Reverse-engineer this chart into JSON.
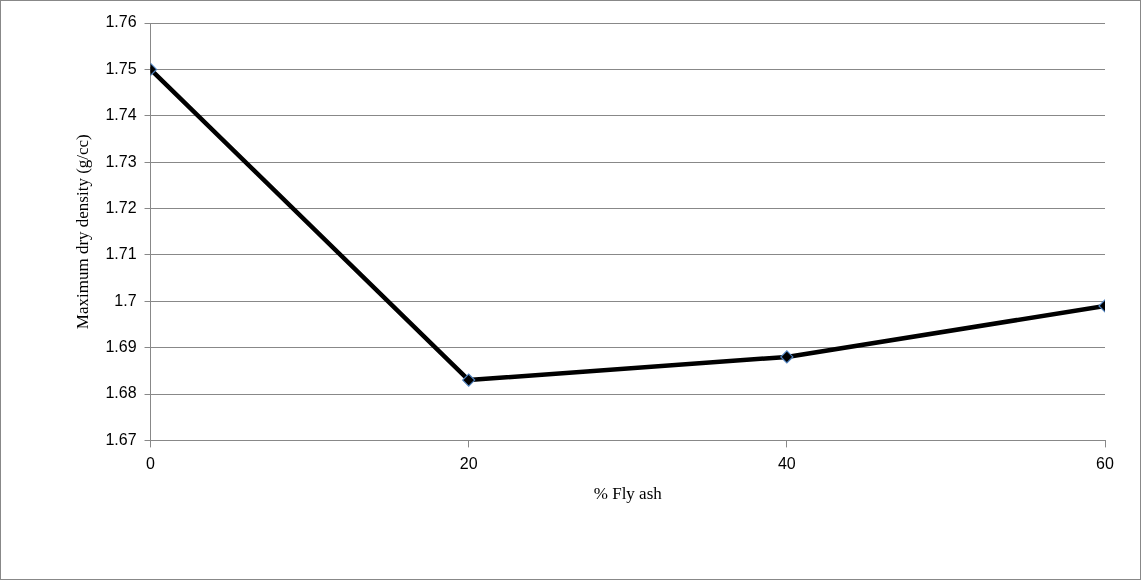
{
  "chart_data": {
    "type": "line",
    "xlabel": "% Fly ash",
    "ylabel": "Maximum dry density (g/cc)",
    "x": [
      0,
      20,
      40,
      60
    ],
    "xlim": [
      0,
      60
    ],
    "xticks": [
      0,
      20,
      40,
      60
    ],
    "ylim": [
      1.67,
      1.76
    ],
    "yticks": [
      1.67,
      1.68,
      1.69,
      1.7,
      1.71,
      1.72,
      1.73,
      1.74,
      1.75,
      1.76
    ],
    "series": [
      {
        "color": "#000000",
        "values": [
          1.75,
          1.683,
          1.688,
          1.699
        ]
      }
    ],
    "marker": "diamond",
    "line_style": "solid",
    "grid": "y",
    "legend": false
  }
}
